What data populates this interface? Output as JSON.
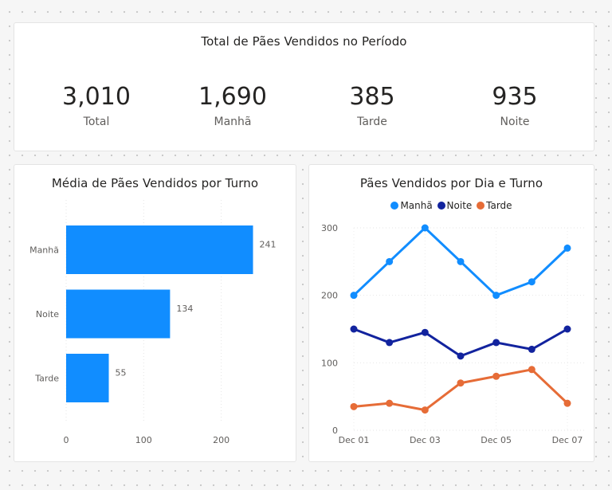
{
  "kpi": {
    "title": "Total de Pães Vendidos no Período",
    "items": [
      {
        "value": "3,010",
        "label": "Total"
      },
      {
        "value": "1,690",
        "label": "Manhã"
      },
      {
        "value": "385",
        "label": "Tarde"
      },
      {
        "value": "935",
        "label": "Noite"
      }
    ]
  },
  "colors": {
    "manha": "#118dff",
    "noite": "#12239e",
    "tarde": "#e66c37",
    "bar": "#118dff"
  },
  "chart_data": [
    {
      "type": "bar",
      "orientation": "horizontal",
      "title": "Média de Pães Vendidos por Turno",
      "categories": [
        "Manhã",
        "Noite",
        "Tarde"
      ],
      "values": [
        241,
        134,
        55
      ],
      "value_labels": [
        "241",
        "134",
        "55"
      ],
      "xlim": [
        0,
        260
      ],
      "x_ticks": [
        0,
        100,
        200
      ],
      "x_tick_labels": [
        "0",
        "100",
        "200"
      ],
      "grid": true
    },
    {
      "type": "line",
      "title": "Pães Vendidos por Dia e Turno",
      "x": [
        "2024-12-01",
        "2024-12-02",
        "2024-12-03",
        "2024-12-04",
        "2024-12-05",
        "2024-12-06",
        "2024-12-07"
      ],
      "x_tick_labels": [
        "Dec 01",
        "Dec 03",
        "Dec 05",
        "Dec 07"
      ],
      "series": [
        {
          "name": "Manhã",
          "color": "#118dff",
          "values": [
            200,
            250,
            300,
            250,
            200,
            220,
            270
          ]
        },
        {
          "name": "Noite",
          "color": "#12239e",
          "values": [
            150,
            130,
            145,
            110,
            130,
            120,
            150
          ]
        },
        {
          "name": "Tarde",
          "color": "#e66c37",
          "values": [
            35,
            40,
            30,
            70,
            80,
            90,
            40
          ]
        }
      ],
      "ylim": [
        0,
        300
      ],
      "y_ticks": [
        0,
        100,
        200,
        300
      ],
      "y_tick_labels": [
        "0",
        "100",
        "200",
        "300"
      ],
      "legend": "top-center",
      "grid": true
    }
  ]
}
